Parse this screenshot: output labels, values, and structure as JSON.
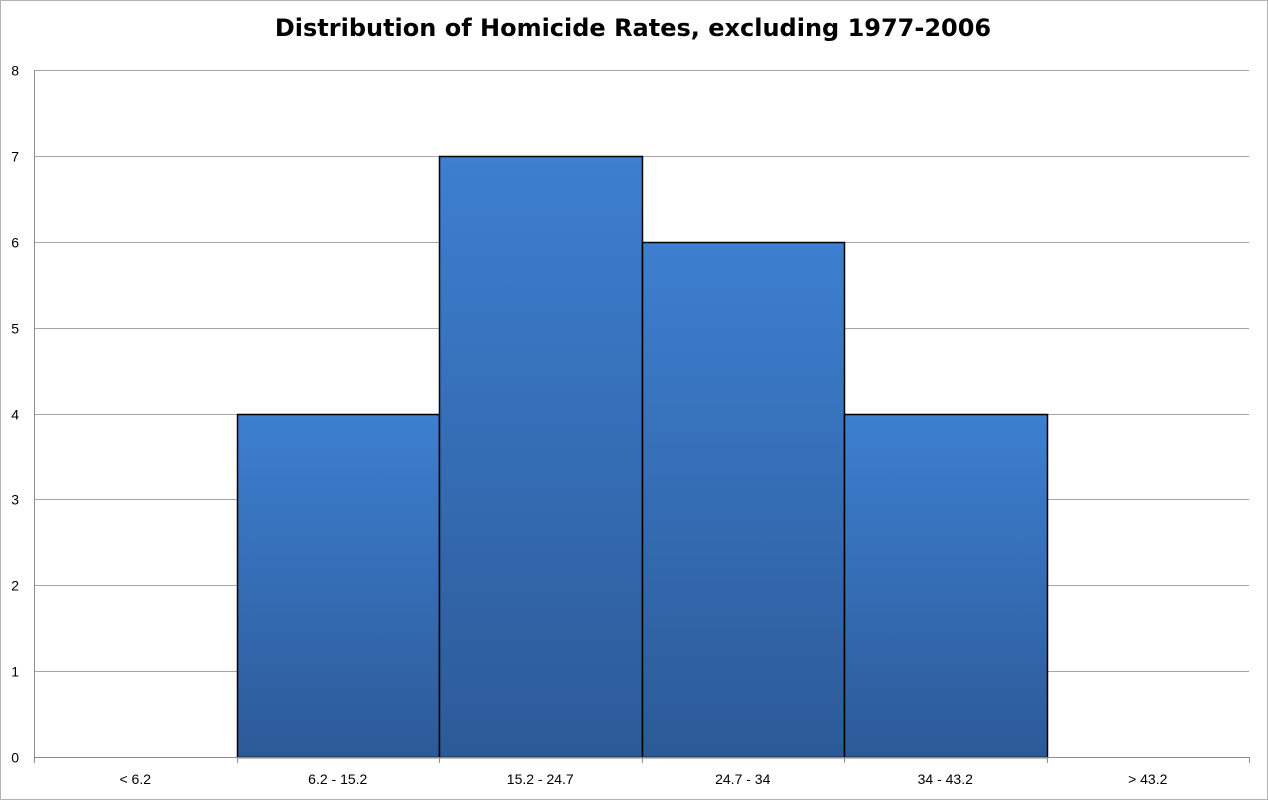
{
  "chart_data": {
    "type": "bar",
    "title": "Distribution of Homicide Rates, excluding 1977-2006",
    "xlabel": "",
    "ylabel": "",
    "categories": [
      "< 6.2",
      "6.2 - 15.2",
      "15.2 - 24.7",
      "24.7 - 34",
      "34 - 43.2",
      "> 43.2"
    ],
    "values": [
      0,
      4,
      7,
      6,
      4,
      0
    ],
    "ylim": [
      0,
      8
    ],
    "yticks": [
      0,
      1,
      2,
      3,
      4,
      5,
      6,
      7,
      8
    ],
    "grid": true,
    "legend": "none",
    "bar_gap": 0,
    "colors": {
      "bar_top": "#3d7fd0",
      "bar_bottom": "#2c5a98",
      "bar_edge": "#000000",
      "grid": "#a6a6a6",
      "axis": "#8c8c8c"
    }
  }
}
